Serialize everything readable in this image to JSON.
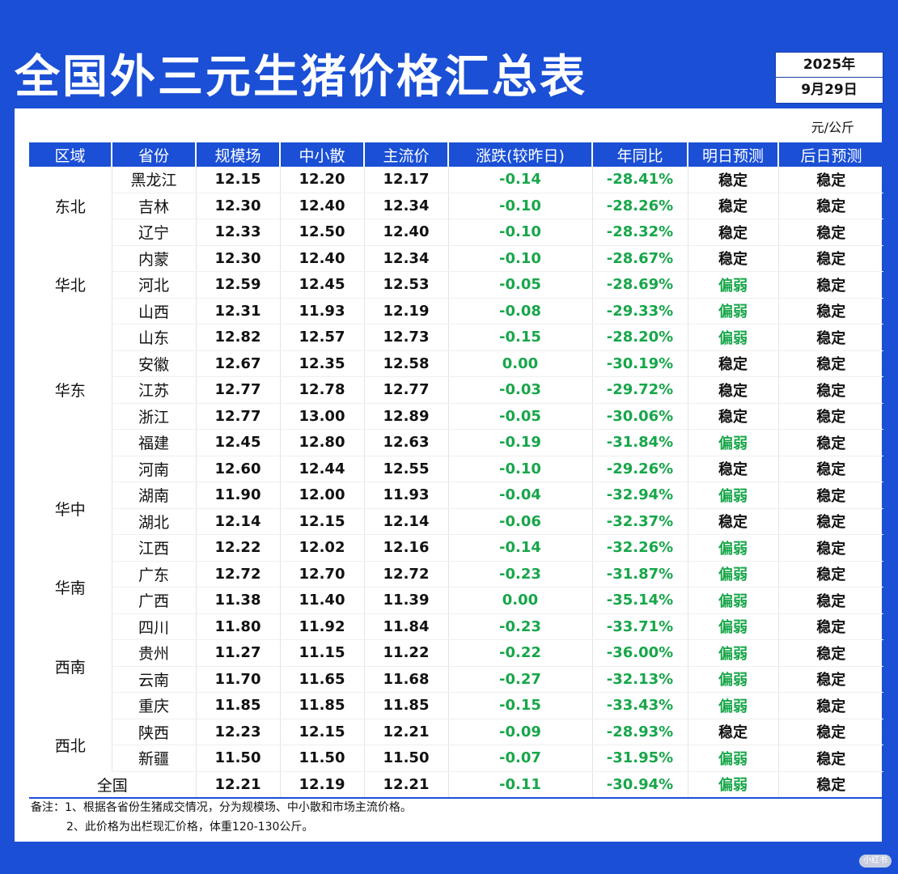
{
  "title": "全国外三元生猪价格汇总表",
  "date": {
    "year": "2025年",
    "day": "9月29日"
  },
  "unit": "元/公斤",
  "headers": [
    "区域",
    "省份",
    "规模场",
    "中小散",
    "主流价",
    "涨跌(较昨日)",
    "年同比",
    "明日预测",
    "后日预测"
  ],
  "colors": {
    "accent": "#1a4fd6",
    "up_down": "#18a64a"
  },
  "regions": [
    {
      "name": "东北",
      "rows": [
        {
          "province": "黑龙江",
          "scale": "12.15",
          "small": "12.20",
          "main": "12.17",
          "change": "-0.14",
          "yoy": "-28.41%",
          "tomorrow": "稳定",
          "after": "稳定"
        },
        {
          "province": "吉林",
          "scale": "12.30",
          "small": "12.40",
          "main": "12.34",
          "change": "-0.10",
          "yoy": "-28.26%",
          "tomorrow": "稳定",
          "after": "稳定"
        },
        {
          "province": "辽宁",
          "scale": "12.33",
          "small": "12.50",
          "main": "12.40",
          "change": "-0.10",
          "yoy": "-28.32%",
          "tomorrow": "稳定",
          "after": "稳定"
        }
      ]
    },
    {
      "name": "华北",
      "rows": [
        {
          "province": "内蒙",
          "scale": "12.30",
          "small": "12.40",
          "main": "12.34",
          "change": "-0.10",
          "yoy": "-28.67%",
          "tomorrow": "稳定",
          "after": "稳定"
        },
        {
          "province": "河北",
          "scale": "12.59",
          "small": "12.45",
          "main": "12.53",
          "change": "-0.05",
          "yoy": "-28.69%",
          "tomorrow": "偏弱",
          "after": "稳定"
        },
        {
          "province": "山西",
          "scale": "12.31",
          "small": "11.93",
          "main": "12.19",
          "change": "-0.08",
          "yoy": "-29.33%",
          "tomorrow": "偏弱",
          "after": "稳定"
        }
      ]
    },
    {
      "name": "华东",
      "rows": [
        {
          "province": "山东",
          "scale": "12.82",
          "small": "12.57",
          "main": "12.73",
          "change": "-0.15",
          "yoy": "-28.20%",
          "tomorrow": "偏弱",
          "after": "稳定"
        },
        {
          "province": "安徽",
          "scale": "12.67",
          "small": "12.35",
          "main": "12.58",
          "change": "0.00",
          "yoy": "-30.19%",
          "tomorrow": "稳定",
          "after": "稳定"
        },
        {
          "province": "江苏",
          "scale": "12.77",
          "small": "12.78",
          "main": "12.77",
          "change": "-0.03",
          "yoy": "-29.72%",
          "tomorrow": "稳定",
          "after": "稳定"
        },
        {
          "province": "浙江",
          "scale": "12.77",
          "small": "13.00",
          "main": "12.89",
          "change": "-0.05",
          "yoy": "-30.06%",
          "tomorrow": "稳定",
          "after": "稳定"
        },
        {
          "province": "福建",
          "scale": "12.45",
          "small": "12.80",
          "main": "12.63",
          "change": "-0.19",
          "yoy": "-31.84%",
          "tomorrow": "偏弱",
          "after": "稳定"
        }
      ]
    },
    {
      "name": "华中",
      "rows": [
        {
          "province": "河南",
          "scale": "12.60",
          "small": "12.44",
          "main": "12.55",
          "change": "-0.10",
          "yoy": "-29.26%",
          "tomorrow": "稳定",
          "after": "稳定"
        },
        {
          "province": "湖南",
          "scale": "11.90",
          "small": "12.00",
          "main": "11.93",
          "change": "-0.04",
          "yoy": "-32.94%",
          "tomorrow": "偏弱",
          "after": "稳定"
        },
        {
          "province": "湖北",
          "scale": "12.14",
          "small": "12.15",
          "main": "12.14",
          "change": "-0.06",
          "yoy": "-32.37%",
          "tomorrow": "稳定",
          "after": "稳定"
        },
        {
          "province": "江西",
          "scale": "12.22",
          "small": "12.02",
          "main": "12.16",
          "change": "-0.14",
          "yoy": "-32.26%",
          "tomorrow": "偏弱",
          "after": "稳定"
        }
      ]
    },
    {
      "name": "华南",
      "rows": [
        {
          "province": "广东",
          "scale": "12.72",
          "small": "12.70",
          "main": "12.72",
          "change": "-0.23",
          "yoy": "-31.87%",
          "tomorrow": "偏弱",
          "after": "稳定"
        },
        {
          "province": "广西",
          "scale": "11.38",
          "small": "11.40",
          "main": "11.39",
          "change": "0.00",
          "yoy": "-35.14%",
          "tomorrow": "偏弱",
          "after": "稳定"
        }
      ]
    },
    {
      "name": "西南",
      "rows": [
        {
          "province": "四川",
          "scale": "11.80",
          "small": "11.92",
          "main": "11.84",
          "change": "-0.23",
          "yoy": "-33.71%",
          "tomorrow": "偏弱",
          "after": "稳定"
        },
        {
          "province": "贵州",
          "scale": "11.27",
          "small": "11.15",
          "main": "11.22",
          "change": "-0.22",
          "yoy": "-36.00%",
          "tomorrow": "偏弱",
          "after": "稳定"
        },
        {
          "province": "云南",
          "scale": "11.70",
          "small": "11.65",
          "main": "11.68",
          "change": "-0.27",
          "yoy": "-32.13%",
          "tomorrow": "偏弱",
          "after": "稳定"
        },
        {
          "province": "重庆",
          "scale": "11.85",
          "small": "11.85",
          "main": "11.85",
          "change": "-0.15",
          "yoy": "-33.43%",
          "tomorrow": "偏弱",
          "after": "稳定"
        }
      ]
    },
    {
      "name": "西北",
      "rows": [
        {
          "province": "陕西",
          "scale": "12.23",
          "small": "12.15",
          "main": "12.21",
          "change": "-0.09",
          "yoy": "-28.93%",
          "tomorrow": "稳定",
          "after": "稳定"
        },
        {
          "province": "新疆",
          "scale": "11.50",
          "small": "11.50",
          "main": "11.50",
          "change": "-0.07",
          "yoy": "-31.95%",
          "tomorrow": "偏弱",
          "after": "稳定"
        }
      ]
    }
  ],
  "national": {
    "label": "全国",
    "scale": "12.21",
    "small": "12.19",
    "main": "12.21",
    "change": "-0.11",
    "yoy": "-30.94%",
    "tomorrow": "偏弱",
    "after": "稳定"
  },
  "notes": [
    "备注：1、根据各省份生猪成交情况，分为规模场、中小散和市场主流价格。",
    "2、此价格为出栏现汇价格，体重120-130公斤。"
  ],
  "watermark": "小红书"
}
